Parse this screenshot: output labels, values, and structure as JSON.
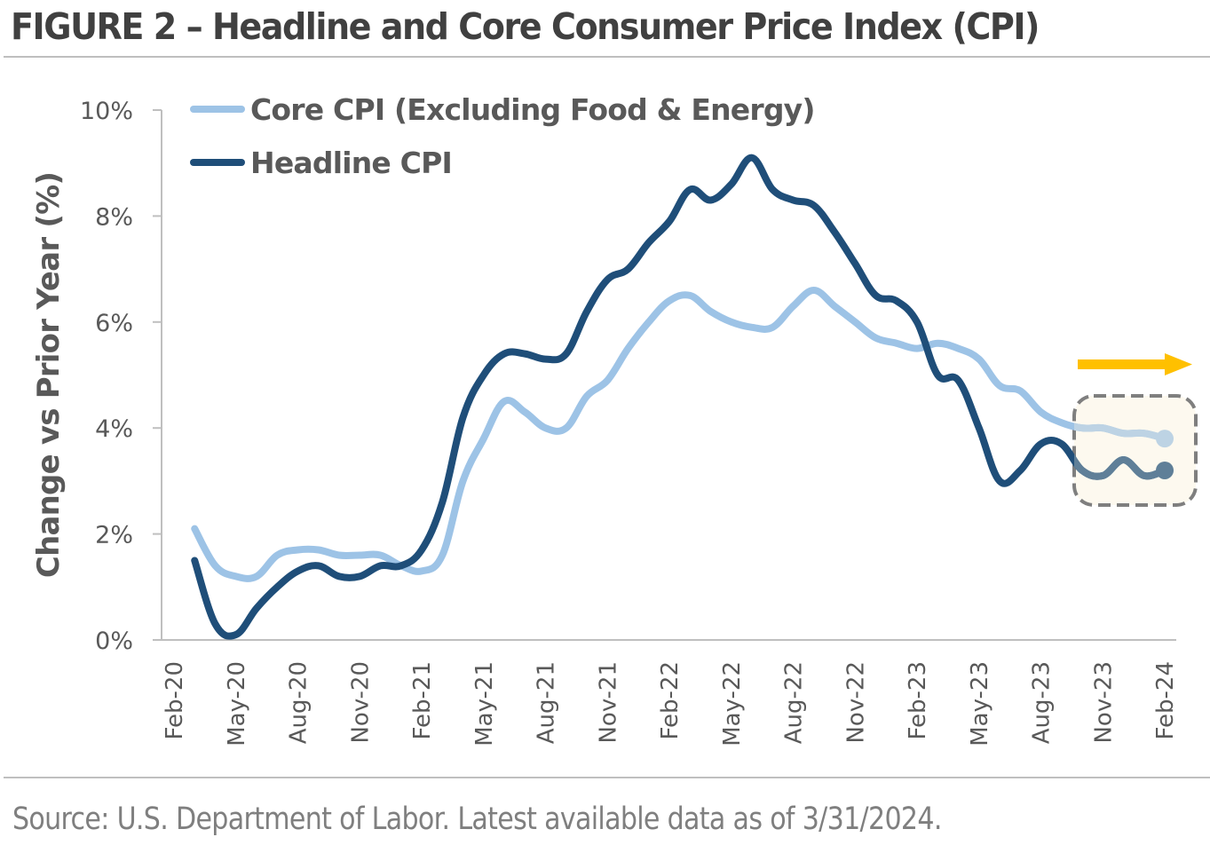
{
  "figure": {
    "title": "FIGURE 2 – Headline and Core Consumer Price Index (CPI)",
    "source": "Source: U.S. Department of Labor. Latest available data as of 3/31/2024."
  },
  "colors": {
    "core": "#9dc3e6",
    "headline": "#1f4e79",
    "core_highlight": "#bdd3e4",
    "headline_highlight": "#5f7f98",
    "highlight_fill": "#fdf9ef",
    "highlight_border": "#7f7f7f",
    "arrow": "#ffc000",
    "axis": "#bfbfbf",
    "text": "#595959"
  },
  "chart_data": {
    "type": "line",
    "title": "FIGURE 2 – Headline and Core Consumer Price Index (CPI)",
    "xlabel": "",
    "ylabel": "Change vs Prior Year (%)",
    "ylim": [
      0,
      10
    ],
    "yticks": [
      0,
      2,
      4,
      6,
      8,
      10
    ],
    "ytick_labels": [
      "0%",
      "2%",
      "4%",
      "6%",
      "8%",
      "10%"
    ],
    "grid": false,
    "legend_position": "top-left",
    "x_axis_start": "Feb-20",
    "xtick_labels": [
      "Feb-20",
      "May-20",
      "Aug-20",
      "Nov-20",
      "Feb-21",
      "May-21",
      "Aug-21",
      "Nov-21",
      "Feb-22",
      "May-22",
      "Aug-22",
      "Nov-22",
      "Feb-23",
      "May-23",
      "Aug-23",
      "Nov-23",
      "Feb-24"
    ],
    "x": [
      "Mar-20",
      "Apr-20",
      "May-20",
      "Jun-20",
      "Jul-20",
      "Aug-20",
      "Sep-20",
      "Oct-20",
      "Nov-20",
      "Dec-20",
      "Jan-21",
      "Feb-21",
      "Mar-21",
      "Apr-21",
      "May-21",
      "Jun-21",
      "Jul-21",
      "Aug-21",
      "Sep-21",
      "Oct-21",
      "Nov-21",
      "Dec-21",
      "Jan-22",
      "Feb-22",
      "Mar-22",
      "Apr-22",
      "May-22",
      "Jun-22",
      "Jul-22",
      "Aug-22",
      "Sep-22",
      "Oct-22",
      "Nov-22",
      "Dec-22",
      "Jan-23",
      "Feb-23",
      "Mar-23",
      "Apr-23",
      "May-23",
      "Jun-23",
      "Jul-23",
      "Aug-23",
      "Sep-23",
      "Oct-23",
      "Nov-23",
      "Dec-23",
      "Jan-24",
      "Feb-24"
    ],
    "series": [
      {
        "name": "Core CPI (Excluding Food & Energy)",
        "key": "core",
        "values": [
          2.1,
          1.4,
          1.2,
          1.2,
          1.6,
          1.7,
          1.7,
          1.6,
          1.6,
          1.6,
          1.4,
          1.3,
          1.6,
          3.0,
          3.8,
          4.5,
          4.3,
          4.0,
          4.0,
          4.6,
          4.9,
          5.5,
          6.0,
          6.4,
          6.5,
          6.2,
          6.0,
          5.9,
          5.9,
          6.3,
          6.6,
          6.3,
          6.0,
          5.7,
          5.6,
          5.5,
          5.6,
          5.5,
          5.3,
          4.8,
          4.7,
          4.3,
          4.1,
          4.0,
          4.0,
          3.9,
          3.9,
          3.8
        ]
      },
      {
        "name": "Headline CPI",
        "key": "headline",
        "values": [
          1.5,
          0.3,
          0.1,
          0.6,
          1.0,
          1.3,
          1.4,
          1.2,
          1.2,
          1.4,
          1.4,
          1.7,
          2.6,
          4.2,
          5.0,
          5.4,
          5.4,
          5.3,
          5.4,
          6.2,
          6.8,
          7.0,
          7.5,
          7.9,
          8.5,
          8.3,
          8.6,
          9.1,
          8.5,
          8.3,
          8.2,
          7.7,
          7.1,
          6.5,
          6.4,
          6.0,
          5.0,
          4.9,
          4.0,
          3.0,
          3.2,
          3.7,
          3.7,
          3.2,
          3.1,
          3.4,
          3.1,
          3.2
        ]
      }
    ],
    "annotations": {
      "highlight_box_from": "Oct-23",
      "highlight_box_to": "Feb-24",
      "forward_arrow": "right",
      "end_markers": true
    }
  }
}
